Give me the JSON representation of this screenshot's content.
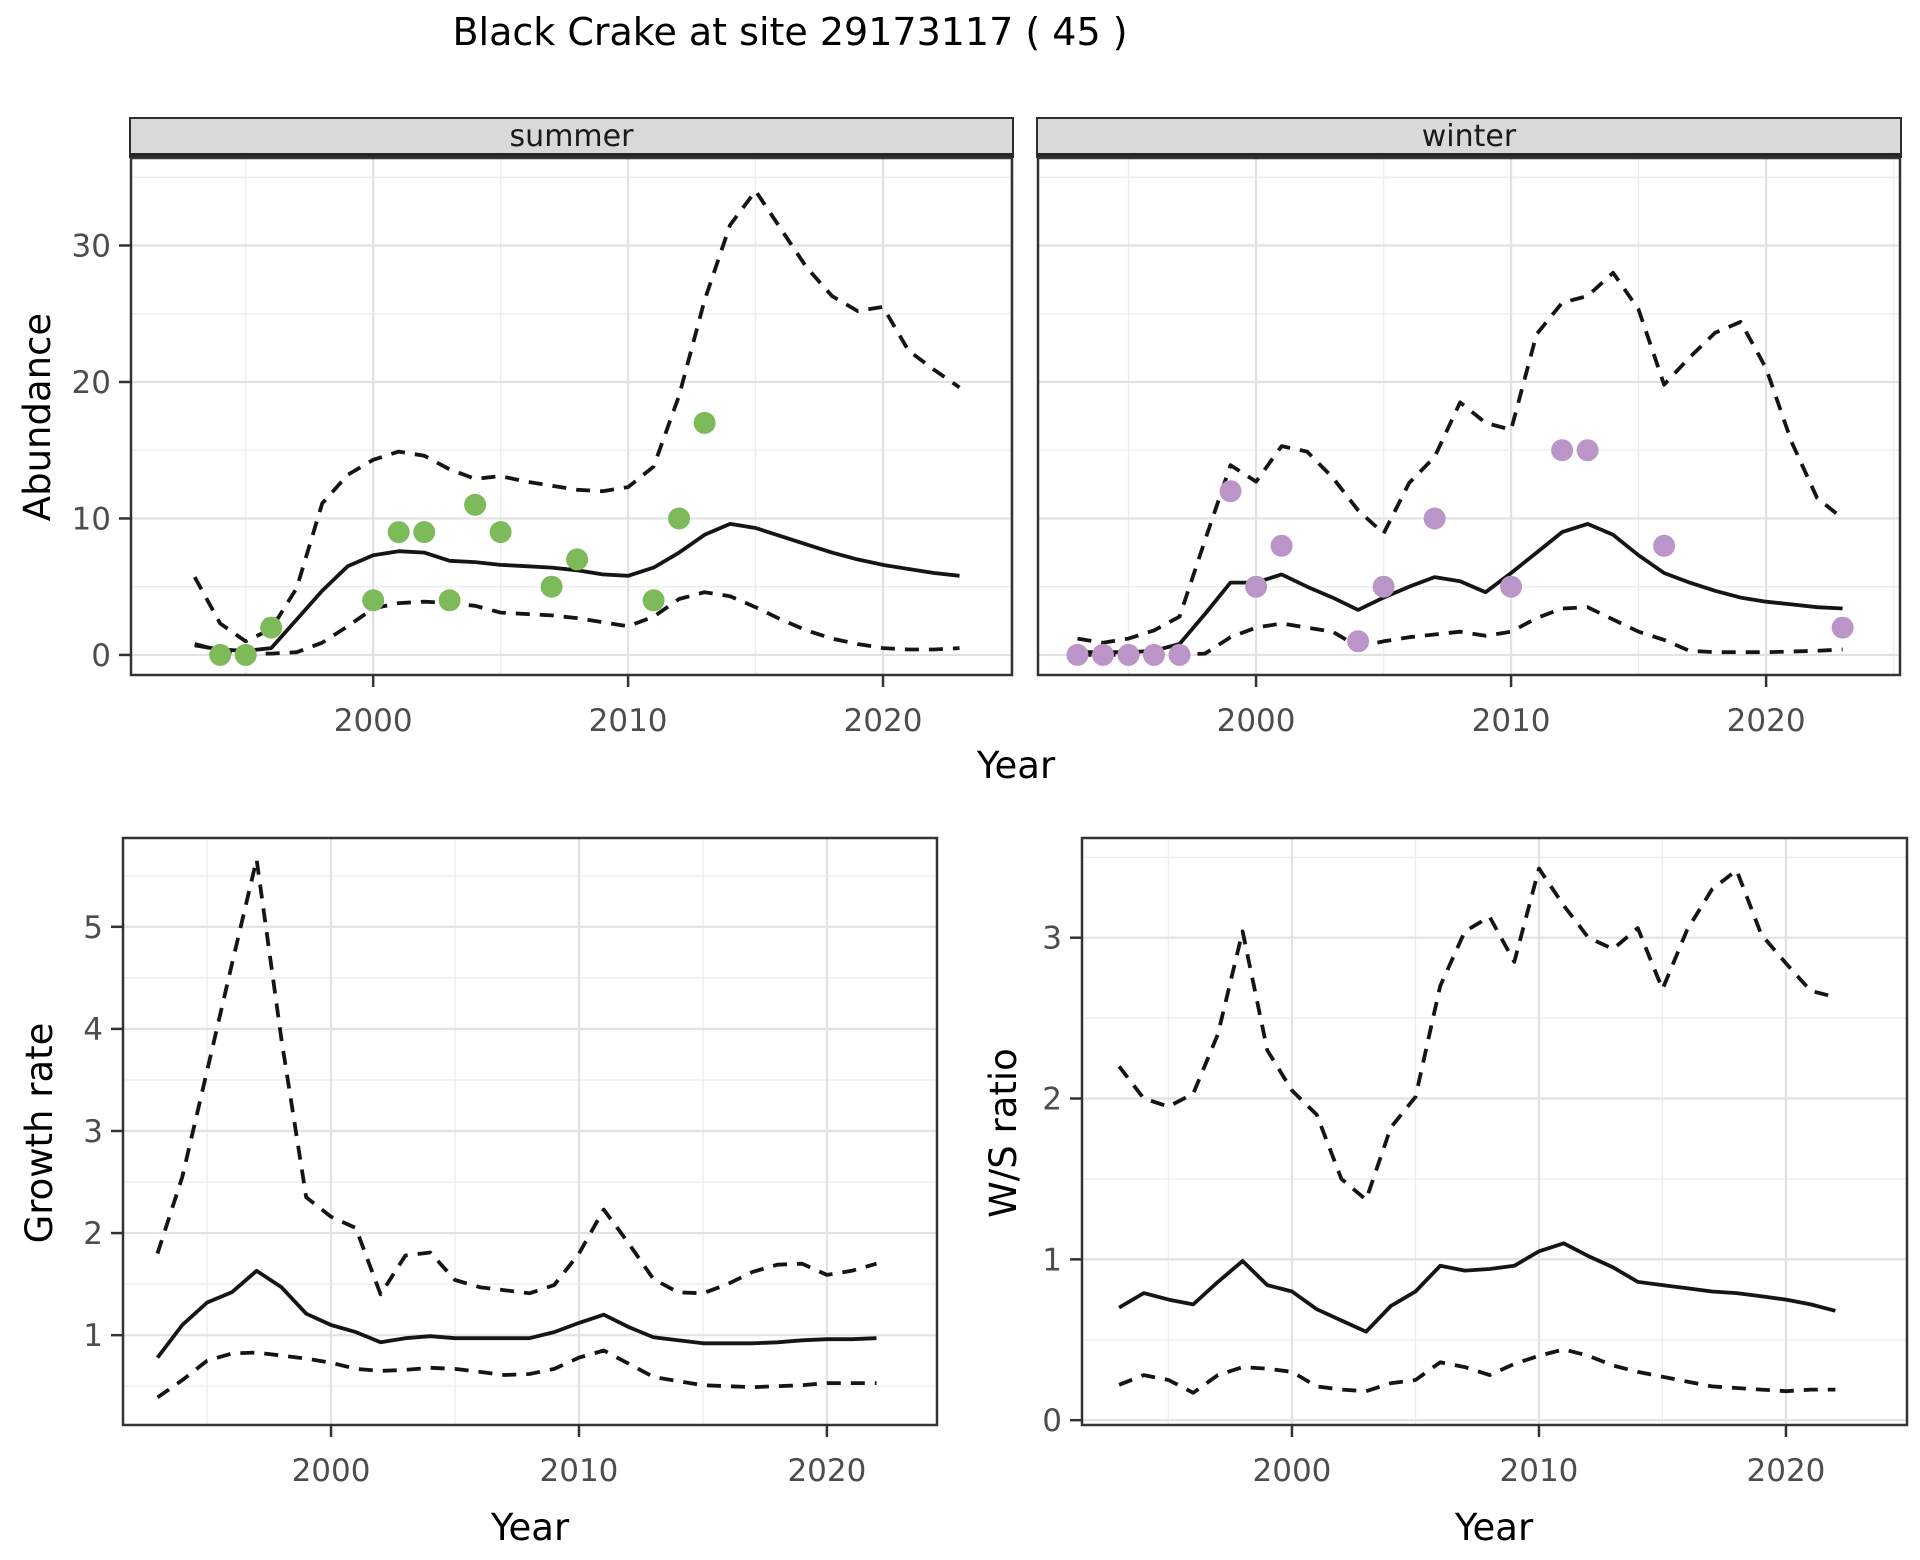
{
  "page": {
    "title": "Black Crake at site 29173117 ( 45 )"
  },
  "top_chart": {
    "facet_labels": {
      "summer": "summer",
      "winter": "winter"
    },
    "y_axis_label": "Abundance",
    "x_axis_label": "Year"
  },
  "bottom_left": {
    "y_axis_label": "Growth rate",
    "x_axis_label": "Year"
  },
  "bottom_right": {
    "y_axis_label": "W/S ratio",
    "x_axis_label": "Year"
  },
  "colors": {
    "summer_points": "#7cba5a",
    "winter_points": "#bc95c8",
    "line": "#151515",
    "grid_major": "#e2e2e2",
    "grid_minor": "#eeeeee",
    "panel_border": "#333333",
    "tick_text": "#4d4d4d",
    "strip_bg": "#d9d9d9"
  },
  "chart_data": [
    {
      "id": "summer",
      "type": "line",
      "facet": "summer",
      "xlabel": "Year",
      "ylabel": "Abundance",
      "x": [
        1993,
        1994,
        1995,
        1996,
        1997,
        1998,
        1999,
        2000,
        2001,
        2002,
        2003,
        2004,
        2005,
        2006,
        2007,
        2008,
        2009,
        2010,
        2011,
        2012,
        2013,
        2014,
        2015,
        2016,
        2017,
        2018,
        2019,
        2020,
        2021,
        2022,
        2023
      ],
      "series": [
        {
          "name": "estimate",
          "style": "solid",
          "values": [
            0.7,
            0.4,
            0.3,
            0.5,
            2.6,
            4.7,
            6.5,
            7.3,
            7.6,
            7.5,
            6.9,
            6.8,
            6.6,
            6.5,
            6.4,
            6.2,
            5.9,
            5.8,
            6.4,
            7.5,
            8.8,
            9.6,
            9.3,
            8.7,
            8.1,
            7.5,
            7.0,
            6.6,
            6.3,
            6.0,
            5.8
          ]
        },
        {
          "name": "upper_ci",
          "style": "dashed",
          "values": [
            5.7,
            2.3,
            1.0,
            1.9,
            4.9,
            11.1,
            13.2,
            14.3,
            14.9,
            14.6,
            13.6,
            12.9,
            13.1,
            12.7,
            12.4,
            12.1,
            12.0,
            12.3,
            13.8,
            19.0,
            26.0,
            31.5,
            34.0,
            31.2,
            28.4,
            26.3,
            25.2,
            25.5,
            22.3,
            20.9,
            19.6
          ]
        },
        {
          "name": "lower_ci",
          "style": "dashed",
          "values": [
            0.8,
            0.3,
            0.1,
            0.1,
            0.2,
            0.9,
            2.1,
            3.4,
            3.8,
            3.9,
            3.8,
            3.6,
            3.1,
            3.0,
            2.9,
            2.7,
            2.4,
            2.1,
            2.8,
            4.1,
            4.6,
            4.3,
            3.5,
            2.6,
            1.8,
            1.2,
            0.8,
            0.5,
            0.4,
            0.4,
            0.5
          ]
        }
      ],
      "points": [
        [
          1994,
          0
        ],
        [
          1995,
          0
        ],
        [
          1996,
          2
        ],
        [
          2000,
          4
        ],
        [
          2001,
          9
        ],
        [
          2002,
          9
        ],
        [
          2003,
          4
        ],
        [
          2004,
          11
        ],
        [
          2005,
          9
        ],
        [
          2007,
          5
        ],
        [
          2008,
          7
        ],
        [
          2011,
          4
        ],
        [
          2012,
          10
        ],
        [
          2013,
          17
        ]
      ],
      "point_color_key": "summer_points",
      "xlim": [
        1990.5,
        2025.06
      ],
      "ylim": [
        -1.47,
        36.41
      ],
      "x_ticks": [
        2000,
        2010,
        2020
      ],
      "x_tick_labels": [
        "2000",
        "2010",
        "2020"
      ],
      "x_minor": [
        1995,
        2005,
        2015,
        2025
      ],
      "y_ticks": [
        0,
        10,
        20,
        30
      ],
      "y_tick_labels": [
        "0",
        "10",
        "20",
        "30"
      ],
      "y_minor": [
        5,
        15,
        25,
        35
      ]
    },
    {
      "id": "winter",
      "type": "line",
      "facet": "winter",
      "xlabel": "Year",
      "ylabel": "Abundance",
      "x": [
        1993,
        1994,
        1995,
        1996,
        1997,
        1998,
        1999,
        2000,
        2001,
        2002,
        2003,
        2004,
        2005,
        2006,
        2007,
        2008,
        2009,
        2010,
        2011,
        2012,
        2013,
        2014,
        2015,
        2016,
        2017,
        2018,
        2019,
        2020,
        2021,
        2022,
        2023
      ],
      "series": [
        {
          "name": "estimate",
          "style": "solid",
          "values": [
            0.2,
            0.2,
            0.2,
            0.3,
            0.8,
            3.0,
            5.3,
            5.3,
            5.9,
            5.0,
            4.2,
            3.3,
            4.2,
            5.0,
            5.7,
            5.4,
            4.6,
            6.0,
            7.5,
            9.0,
            9.6,
            8.8,
            7.3,
            6.0,
            5.3,
            4.7,
            4.2,
            3.9,
            3.7,
            3.5,
            3.4
          ]
        },
        {
          "name": "upper_ci",
          "style": "dashed",
          "values": [
            1.2,
            0.9,
            1.2,
            1.8,
            2.8,
            8.4,
            13.9,
            12.7,
            15.3,
            14.9,
            13.0,
            10.6,
            8.9,
            12.6,
            14.5,
            18.5,
            17.0,
            16.5,
            23.5,
            25.8,
            26.3,
            28.0,
            25.3,
            19.8,
            21.8,
            23.6,
            24.4,
            21.0,
            15.6,
            11.5,
            10.0
          ]
        },
        {
          "name": "lower_ci",
          "style": "dashed",
          "values": [
            0.0,
            0.0,
            0.0,
            0.0,
            0.05,
            0.1,
            1.3,
            2.0,
            2.3,
            2.0,
            1.7,
            0.6,
            1.0,
            1.3,
            1.5,
            1.7,
            1.4,
            1.7,
            2.7,
            3.4,
            3.5,
            2.6,
            1.7,
            1.1,
            0.3,
            0.2,
            0.2,
            0.2,
            0.25,
            0.3,
            0.4
          ]
        }
      ],
      "points": [
        [
          1993,
          0
        ],
        [
          1994,
          0
        ],
        [
          1995,
          0
        ],
        [
          1996,
          0
        ],
        [
          1997,
          0
        ],
        [
          1999,
          12
        ],
        [
          2000,
          5
        ],
        [
          2001,
          8
        ],
        [
          2004,
          1
        ],
        [
          2005,
          5
        ],
        [
          2007,
          10
        ],
        [
          2010,
          5
        ],
        [
          2012,
          15
        ],
        [
          2013,
          15
        ],
        [
          2016,
          8
        ],
        [
          2023,
          2
        ]
      ],
      "point_color_key": "winter_points",
      "xlim": [
        1991.45,
        2025.25
      ],
      "ylim": [
        -1.47,
        36.41
      ],
      "x_ticks": [
        2000,
        2010,
        2020
      ],
      "x_tick_labels": [
        "2000",
        "2010",
        "2020"
      ],
      "x_minor": [
        1995,
        2005,
        2015,
        2025
      ],
      "y_ticks": [
        0,
        10,
        20,
        30
      ],
      "y_tick_labels": [],
      "y_minor": [
        5,
        15,
        25,
        35
      ]
    },
    {
      "id": "growth",
      "type": "line",
      "xlabel": "Year",
      "ylabel": "Growth rate",
      "x": [
        1993,
        1994,
        1995,
        1996,
        1997,
        1998,
        1999,
        2000,
        2001,
        2002,
        2003,
        2004,
        2005,
        2006,
        2007,
        2008,
        2009,
        2010,
        2011,
        2012,
        2013,
        2014,
        2015,
        2016,
        2017,
        2018,
        2019,
        2020,
        2021,
        2022
      ],
      "series": [
        {
          "name": "estimate",
          "style": "solid",
          "values": [
            0.78,
            1.1,
            1.32,
            1.42,
            1.63,
            1.47,
            1.21,
            1.1,
            1.03,
            0.93,
            0.97,
            0.99,
            0.97,
            0.97,
            0.97,
            0.97,
            1.03,
            1.12,
            1.2,
            1.08,
            0.98,
            0.95,
            0.92,
            0.92,
            0.92,
            0.93,
            0.95,
            0.96,
            0.96,
            0.97
          ]
        },
        {
          "name": "upper_ci",
          "style": "dashed",
          "values": [
            1.8,
            2.55,
            3.59,
            4.63,
            5.66,
            3.9,
            2.35,
            2.16,
            2.05,
            1.4,
            1.78,
            1.81,
            1.54,
            1.47,
            1.44,
            1.41,
            1.49,
            1.8,
            2.23,
            1.9,
            1.55,
            1.42,
            1.41,
            1.5,
            1.62,
            1.69,
            1.7,
            1.59,
            1.63,
            1.7
          ]
        },
        {
          "name": "lower_ci",
          "style": "dashed",
          "values": [
            0.39,
            0.56,
            0.75,
            0.82,
            0.83,
            0.8,
            0.77,
            0.73,
            0.67,
            0.65,
            0.66,
            0.68,
            0.67,
            0.64,
            0.61,
            0.62,
            0.67,
            0.78,
            0.85,
            0.72,
            0.59,
            0.55,
            0.51,
            0.5,
            0.49,
            0.5,
            0.51,
            0.53,
            0.53,
            0.53
          ]
        }
      ],
      "points": [],
      "xlim": [
        1991.61,
        2024.44
      ],
      "ylim": [
        0.12,
        5.87
      ],
      "x_ticks": [
        2000,
        2010,
        2020
      ],
      "x_tick_labels": [
        "2000",
        "2010",
        "2020"
      ],
      "x_minor": [
        1995,
        2005,
        2015,
        2025
      ],
      "y_ticks": [
        1,
        2,
        3,
        4,
        5
      ],
      "y_tick_labels": [
        "1",
        "2",
        "3",
        "4",
        "5"
      ],
      "y_minor": [
        0.5,
        1.5,
        2.5,
        3.5,
        4.5,
        5.5
      ]
    },
    {
      "id": "ws",
      "type": "line",
      "xlabel": "Year",
      "ylabel": "W/S ratio",
      "x": [
        1993,
        1994,
        1995,
        1996,
        1997,
        1998,
        1999,
        2000,
        2001,
        2002,
        2003,
        2004,
        2005,
        2006,
        2007,
        2008,
        2009,
        2010,
        2011,
        2012,
        2013,
        2014,
        2015,
        2016,
        2017,
        2018,
        2019,
        2020,
        2021,
        2022
      ],
      "series": [
        {
          "name": "estimate",
          "style": "solid",
          "values": [
            0.7,
            0.79,
            0.75,
            0.72,
            0.86,
            0.99,
            0.84,
            0.8,
            0.69,
            0.62,
            0.55,
            0.71,
            0.8,
            0.96,
            0.93,
            0.94,
            0.96,
            1.05,
            1.1,
            1.02,
            0.95,
            0.86,
            0.84,
            0.82,
            0.8,
            0.79,
            0.77,
            0.75,
            0.72,
            0.68
          ]
        },
        {
          "name": "upper_ci",
          "style": "dashed",
          "values": [
            2.2,
            2.0,
            1.95,
            2.03,
            2.4,
            3.04,
            2.3,
            2.05,
            1.9,
            1.5,
            1.37,
            1.82,
            2.01,
            2.7,
            3.04,
            3.13,
            2.85,
            3.43,
            3.2,
            3.0,
            2.93,
            3.06,
            2.68,
            3.05,
            3.3,
            3.42,
            3.02,
            2.84,
            2.67,
            2.63
          ]
        },
        {
          "name": "lower_ci",
          "style": "dashed",
          "values": [
            0.22,
            0.28,
            0.25,
            0.17,
            0.28,
            0.33,
            0.32,
            0.3,
            0.21,
            0.19,
            0.18,
            0.23,
            0.25,
            0.36,
            0.33,
            0.28,
            0.35,
            0.4,
            0.44,
            0.4,
            0.34,
            0.3,
            0.27,
            0.24,
            0.21,
            0.2,
            0.19,
            0.18,
            0.19,
            0.19
          ]
        }
      ],
      "points": [],
      "xlim": [
        1991.5,
        2024.9
      ],
      "ylim": [
        -0.03,
        3.62
      ],
      "x_ticks": [
        2000,
        2010,
        2020
      ],
      "x_tick_labels": [
        "2000",
        "2010",
        "2020"
      ],
      "x_minor": [
        1995,
        2005,
        2015,
        2025
      ],
      "y_ticks": [
        0,
        1,
        2,
        3
      ],
      "y_tick_labels": [
        "0",
        "1",
        "2",
        "3"
      ],
      "y_minor": [
        0.5,
        1.5,
        2.5,
        3.5
      ]
    }
  ]
}
